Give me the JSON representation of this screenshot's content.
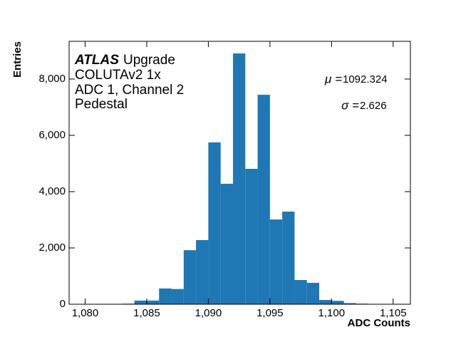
{
  "chart_data": {
    "type": "histogram",
    "xlabel": "ADC Counts",
    "ylabel": "Entries",
    "experiment": "ATLAS",
    "experiment_tag": "Upgrade",
    "annotations": [
      "COLUTAv2 1x",
      "ADC 1, Channel 2",
      "Pedestal"
    ],
    "stats": [
      {
        "symbol": "μ =",
        "value": 1092.324
      },
      {
        "symbol": "σ =",
        "value": 2.626
      }
    ],
    "bins": [
      1083,
      1084,
      1085,
      1086,
      1087,
      1088,
      1089,
      1090,
      1091,
      1092,
      1093,
      1094,
      1095,
      1096,
      1097,
      1098,
      1099,
      1100,
      1101,
      1102,
      1103
    ],
    "values": [
      20,
      130,
      130,
      560,
      540,
      1920,
      2280,
      5750,
      4280,
      8910,
      4810,
      7440,
      3010,
      3290,
      860,
      760,
      150,
      120,
      40,
      20
    ],
    "color": "#1f77b4",
    "xlim": [
      1078.7,
      1106.4
    ],
    "ylim": [
      0,
      9340
    ],
    "xticks": [
      {
        "value": 1080,
        "label": "1,080"
      },
      {
        "value": 1085,
        "label": "1,085"
      },
      {
        "value": 1090,
        "label": "1,090"
      },
      {
        "value": 1095,
        "label": "1,095"
      },
      {
        "value": 1100,
        "label": "1,100"
      },
      {
        "value": 1105,
        "label": "1,105"
      }
    ],
    "yticks": [
      0,
      {
        "value": 2000,
        "label": "2,000"
      },
      {
        "value": 4000,
        "label": "4,000"
      },
      {
        "value": 6000,
        "label": "6,000"
      },
      {
        "value": 8000,
        "label": "8,000"
      }
    ]
  }
}
